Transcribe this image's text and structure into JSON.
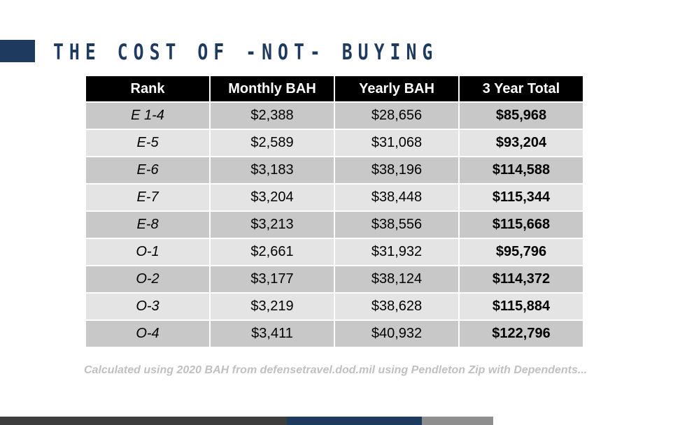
{
  "title": "THE COST OF -NOT- BUYING",
  "table": {
    "headers": [
      "Rank",
      "Monthly BAH",
      "Yearly BAH",
      "3 Year Total"
    ],
    "rows": [
      [
        "E 1-4",
        "$2,388",
        "$28,656",
        "$85,968"
      ],
      [
        "E-5",
        "$2,589",
        "$31,068",
        "$93,204"
      ],
      [
        "E-6",
        "$3,183",
        "$38,196",
        "$114,588"
      ],
      [
        "E-7",
        "$3,204",
        "$38,448",
        "$115,344"
      ],
      [
        "E-8",
        "$3,213",
        "$38,556",
        "$115,668"
      ],
      [
        "O-1",
        "$2,661",
        "$31,932",
        "$95,796"
      ],
      [
        "O-2",
        "$3,177",
        "$38,124",
        "$114,372"
      ],
      [
        "O-3",
        "$3,219",
        "$38,628",
        "$115,884"
      ],
      [
        "O-4",
        "$3,411",
        "$40,932",
        "$122,796"
      ]
    ]
  },
  "footnote": "Calculated using 2020 BAH from defensetravel.dod.mil using Pendleton Zip with Dependents...",
  "colors": {
    "accent_navy": "#1f3a5f",
    "header_bg": "#000000",
    "row_dark": "#c8c8c8",
    "row_light": "#e4e4e4",
    "footnote": "#c0c0c0"
  }
}
